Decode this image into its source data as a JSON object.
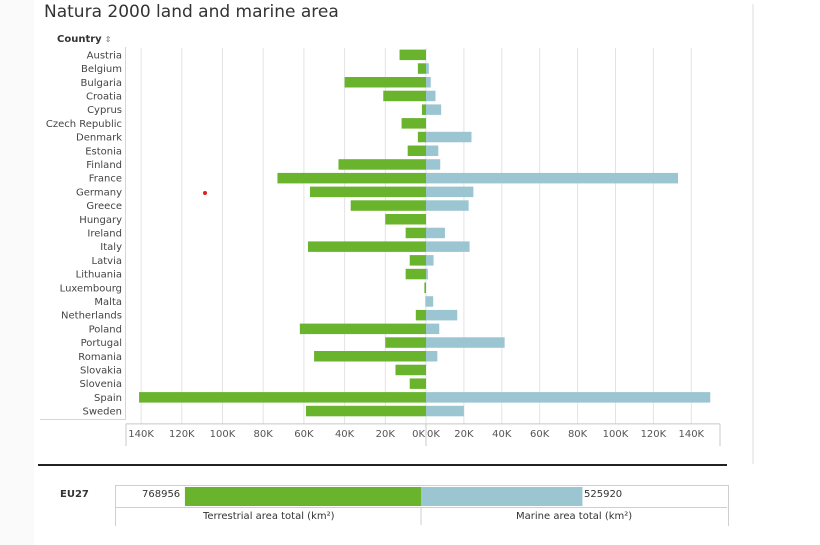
{
  "title": "Natura 2000 land and marine area",
  "country_header": "Country",
  "sort_icon": "sort-icon",
  "colors": {
    "terrestrial": "#6ab42d",
    "marine": "#9cc5d2",
    "grid": "#e3e3e3",
    "axis": "#c8c8c8"
  },
  "chart_data": {
    "type": "bar",
    "orientation": "horizontal-diverging",
    "categories": [
      "Austria",
      "Belgium",
      "Bulgaria",
      "Croatia",
      "Cyprus",
      "Czech Republic",
      "Denmark",
      "Estonia",
      "Finland",
      "France",
      "Germany",
      "Greece",
      "Hungary",
      "Ireland",
      "Italy",
      "Latvia",
      "Lithuania",
      "Luxembourg",
      "Malta",
      "Netherlands",
      "Poland",
      "Portugal",
      "Romania",
      "Slovakia",
      "Slovenia",
      "Spain",
      "Sweden"
    ],
    "series": [
      {
        "name": "Terrestrial area total (km²)",
        "direction": "left",
        "values": [
          13000,
          4000,
          40000,
          21000,
          2000,
          12000,
          4000,
          9000,
          43000,
          73000,
          57000,
          37000,
          20000,
          10000,
          58000,
          8000,
          10000,
          800,
          200,
          5000,
          62000,
          20000,
          55000,
          15000,
          8000,
          141000,
          59000
        ]
      },
      {
        "name": "Marine area total (km²)",
        "direction": "right",
        "values": [
          0,
          1500,
          2500,
          5000,
          8000,
          0,
          24000,
          6500,
          7500,
          133000,
          25000,
          22500,
          0,
          10000,
          23000,
          4000,
          1000,
          0,
          3800,
          16500,
          7000,
          41500,
          6000,
          0,
          0,
          150000,
          20000
        ]
      }
    ],
    "x_ticks_left": [
      "140K",
      "120K",
      "100K",
      "80K",
      "60K",
      "40K",
      "20K",
      "0K"
    ],
    "x_ticks_right": [
      "0K",
      "20K",
      "40K",
      "60K",
      "80K",
      "100K",
      "120K",
      "140K"
    ],
    "xlim_left": [
      0,
      145000
    ],
    "xlim_right": [
      0,
      150000
    ]
  },
  "summary": {
    "label": "EU27",
    "terrestrial_total": 768956,
    "marine_total": 525920,
    "terrestrial_text": "768956",
    "marine_text": "525920",
    "terrestrial_caption": "Terrestrial area total (km²)",
    "marine_caption": "Marine area total (km²)"
  }
}
